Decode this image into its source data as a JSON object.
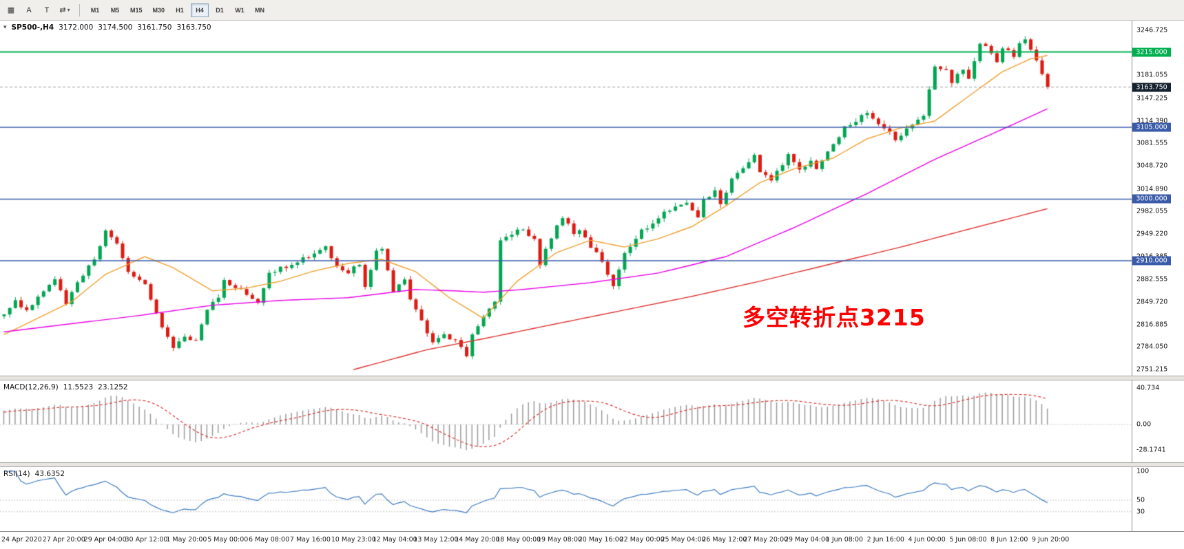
{
  "toolbar": {
    "left_icons": [
      {
        "name": "chart-window-icon",
        "glyph": "▦"
      },
      {
        "name": "autoscroll-button",
        "label": "A"
      },
      {
        "name": "text-tool-button",
        "label": "T"
      },
      {
        "name": "cycle-symbols-button",
        "glyph": "⇄",
        "caret": "▾"
      }
    ],
    "timeframes": [
      "M1",
      "M5",
      "M15",
      "M30",
      "H1",
      "H4",
      "D1",
      "W1",
      "MN"
    ],
    "active_timeframe": "H4"
  },
  "main_chart": {
    "collapse_icon": "▾",
    "symbol_period": "SP500-,H4",
    "ohlc": {
      "open": "3172.000",
      "high": "3174.500",
      "low": "3161.750",
      "close": "3163.750"
    },
    "annotation": {
      "text": "多空转折点3215",
      "color": "#FF0000"
    },
    "scale_labels": [
      "3246.725",
      "3181.055",
      "3147.225",
      "3114.390",
      "3081.555",
      "3048.720",
      "3014.890",
      "2982.055",
      "2949.220",
      "2916.385",
      "2882.555",
      "2849.720",
      "2816.885",
      "2784.050",
      "2751.215"
    ],
    "hlines": [
      {
        "price": 3215.0,
        "label": "3215.000",
        "color": "#00B050",
        "width": 2
      },
      {
        "price": 3105.0,
        "label": "3105.000",
        "color": "#3A5BAA",
        "width": 1.7
      },
      {
        "price": 3000.0,
        "label": "3000.000",
        "color": "#3A5BAA",
        "width": 1.7
      },
      {
        "price": 2910.0,
        "label": "2910.000",
        "color": "#3A5BAA",
        "width": 1.7
      }
    ],
    "current_price": {
      "value": 3163.75,
      "label": "3163.750",
      "bg": "#15212f"
    }
  },
  "macd": {
    "header": "MACD(12,26,9)",
    "values": [
      "11.5523",
      "23.1252"
    ],
    "scale_labels": [
      "40.734",
      "0.00",
      "-28.1741"
    ]
  },
  "rsi": {
    "header": "RSI(14)",
    "value": "43.6352",
    "scale_labels": [
      "100",
      "50",
      "30"
    ]
  },
  "time_axis": [
    "24 Apr 2020",
    "27 Apr 20:00",
    "29 Apr 04:00",
    "30 Apr 12:00",
    "1 May 20:00",
    "5 May 00:00",
    "6 May 08:00",
    "7 May 16:00",
    "10 May 23:00",
    "12 May 04:00",
    "13 May 12:00",
    "14 May 20:00",
    "18 May 00:00",
    "19 May 08:00",
    "20 May 16:00",
    "22 May 00:00",
    "25 May 04:00",
    "26 May 12:00",
    "27 May 20:00",
    "29 May 04:00",
    "1 Jun 08:00",
    "2 Jun 16:00",
    "4 Jun 00:00",
    "5 Jun 08:00",
    "8 Jun 12:00",
    "9 Jun 20:00"
  ],
  "chart_data": {
    "type": "candlestick",
    "symbol": "SP500-",
    "timeframe": "H4",
    "title": "SP500-,H4 3172.000 3174.500 3161.750 3163.750",
    "price_axis": {
      "max": 3246.725,
      "min": 2751.215
    },
    "candles": 186,
    "up_color": "#00A651",
    "down_color": "#DE1B12",
    "close_anchors": [
      [
        0,
        2832
      ],
      [
        2,
        2850
      ],
      [
        4,
        2838
      ],
      [
        7,
        2868
      ],
      [
        9,
        2886
      ],
      [
        11,
        2848
      ],
      [
        13,
        2878
      ],
      [
        16,
        2912
      ],
      [
        18,
        2952
      ],
      [
        20,
        2936
      ],
      [
        22,
        2892
      ],
      [
        25,
        2876
      ],
      [
        26,
        2856
      ],
      [
        28,
        2812
      ],
      [
        30,
        2782
      ],
      [
        32,
        2802
      ],
      [
        34,
        2792
      ],
      [
        36,
        2840
      ],
      [
        38,
        2856
      ],
      [
        39,
        2880
      ],
      [
        41,
        2872
      ],
      [
        43,
        2862
      ],
      [
        45,
        2846
      ],
      [
        47,
        2890
      ],
      [
        49,
        2900
      ],
      [
        52,
        2906
      ],
      [
        53,
        2912
      ],
      [
        55,
        2920
      ],
      [
        57,
        2930
      ],
      [
        59,
        2900
      ],
      [
        61,
        2892
      ],
      [
        63,
        2906
      ],
      [
        64,
        2872
      ],
      [
        66,
        2924
      ],
      [
        67,
        2930
      ],
      [
        69,
        2866
      ],
      [
        71,
        2880
      ],
      [
        72,
        2852
      ],
      [
        74,
        2822
      ],
      [
        76,
        2790
      ],
      [
        78,
        2800
      ],
      [
        80,
        2794
      ],
      [
        82,
        2772
      ],
      [
        83,
        2800
      ],
      [
        85,
        2830
      ],
      [
        87,
        2850
      ],
      [
        88,
        2938
      ],
      [
        90,
        2950
      ],
      [
        92,
        2956
      ],
      [
        94,
        2940
      ],
      [
        95,
        2906
      ],
      [
        97,
        2944
      ],
      [
        99,
        2974
      ],
      [
        101,
        2950
      ],
      [
        102,
        2956
      ],
      [
        104,
        2930
      ],
      [
        106,
        2910
      ],
      [
        108,
        2872
      ],
      [
        110,
        2920
      ],
      [
        112,
        2940
      ],
      [
        113,
        2954
      ],
      [
        115,
        2964
      ],
      [
        117,
        2980
      ],
      [
        119,
        2990
      ],
      [
        121,
        2996
      ],
      [
        123,
        2976
      ],
      [
        124,
        3000
      ],
      [
        126,
        3010
      ],
      [
        127,
        2992
      ],
      [
        129,
        3030
      ],
      [
        131,
        3046
      ],
      [
        133,
        3064
      ],
      [
        134,
        3042
      ],
      [
        136,
        3030
      ],
      [
        138,
        3050
      ],
      [
        139,
        3064
      ],
      [
        141,
        3042
      ],
      [
        143,
        3056
      ],
      [
        144,
        3042
      ],
      [
        146,
        3070
      ],
      [
        148,
        3090
      ],
      [
        149,
        3104
      ],
      [
        151,
        3114
      ],
      [
        153,
        3126
      ],
      [
        155,
        3110
      ],
      [
        157,
        3096
      ],
      [
        158,
        3084
      ],
      [
        160,
        3104
      ],
      [
        162,
        3114
      ],
      [
        163,
        3120
      ],
      [
        165,
        3196
      ],
      [
        167,
        3186
      ],
      [
        168,
        3172
      ],
      [
        170,
        3190
      ],
      [
        171,
        3176
      ],
      [
        173,
        3230
      ],
      [
        175,
        3216
      ],
      [
        176,
        3202
      ],
      [
        177,
        3220
      ],
      [
        179,
        3210
      ],
      [
        180,
        3226
      ],
      [
        181,
        3236
      ],
      [
        182,
        3220
      ],
      [
        183,
        3200
      ],
      [
        184,
        3180
      ],
      [
        185,
        3163.75
      ]
    ],
    "ma_lines": [
      {
        "name": "ma-fast",
        "color": "#F0A030",
        "anchors": [
          [
            0,
            2802
          ],
          [
            12,
            2850
          ],
          [
            18,
            2890
          ],
          [
            25,
            2916
          ],
          [
            30,
            2900
          ],
          [
            37,
            2866
          ],
          [
            43,
            2870
          ],
          [
            49,
            2880
          ],
          [
            55,
            2895
          ],
          [
            61,
            2906
          ],
          [
            67,
            2912
          ],
          [
            73,
            2894
          ],
          [
            79,
            2856
          ],
          [
            85,
            2826
          ],
          [
            91,
            2880
          ],
          [
            98,
            2922
          ],
          [
            104,
            2940
          ],
          [
            110,
            2930
          ],
          [
            116,
            2942
          ],
          [
            122,
            2960
          ],
          [
            128,
            2990
          ],
          [
            134,
            3024
          ],
          [
            140,
            3044
          ],
          [
            147,
            3060
          ],
          [
            153,
            3088
          ],
          [
            159,
            3104
          ],
          [
            165,
            3114
          ],
          [
            171,
            3150
          ],
          [
            177,
            3186
          ],
          [
            182,
            3205
          ],
          [
            185,
            3210
          ]
        ]
      },
      {
        "name": "ma-medium",
        "color": "#E800E8",
        "anchors": [
          [
            0,
            2806
          ],
          [
            24,
            2830
          ],
          [
            37,
            2845
          ],
          [
            49,
            2852
          ],
          [
            61,
            2856
          ],
          [
            73,
            2868
          ],
          [
            80,
            2866
          ],
          [
            85,
            2864
          ],
          [
            92,
            2868
          ],
          [
            104,
            2878
          ],
          [
            116,
            2892
          ],
          [
            128,
            2916
          ],
          [
            140,
            2958
          ],
          [
            153,
            3008
          ],
          [
            165,
            3058
          ],
          [
            177,
            3102
          ],
          [
            185,
            3132
          ]
        ]
      },
      {
        "name": "ma-slow",
        "color": "#E03030",
        "anchors": [
          [
            62,
            2751
          ],
          [
            75,
            2780
          ],
          [
            85,
            2796
          ],
          [
            98,
            2818
          ],
          [
            110,
            2838
          ],
          [
            122,
            2858
          ],
          [
            134,
            2880
          ],
          [
            147,
            2906
          ],
          [
            159,
            2930
          ],
          [
            171,
            2956
          ],
          [
            185,
            2986
          ]
        ]
      }
    ],
    "indicators": {
      "macd": {
        "fast": 12,
        "slow": 26,
        "signal": 9,
        "histogram_color": "#9a9a9a",
        "signal_color": "#dd3333",
        "axis": {
          "max": 40.734,
          "zero": 0,
          "min": -28.1741
        }
      },
      "rsi": {
        "period": 14,
        "color": "#3E7BC4",
        "levels": [
          30,
          50
        ],
        "axis": {
          "max": 100,
          "min": 0
        }
      }
    }
  }
}
